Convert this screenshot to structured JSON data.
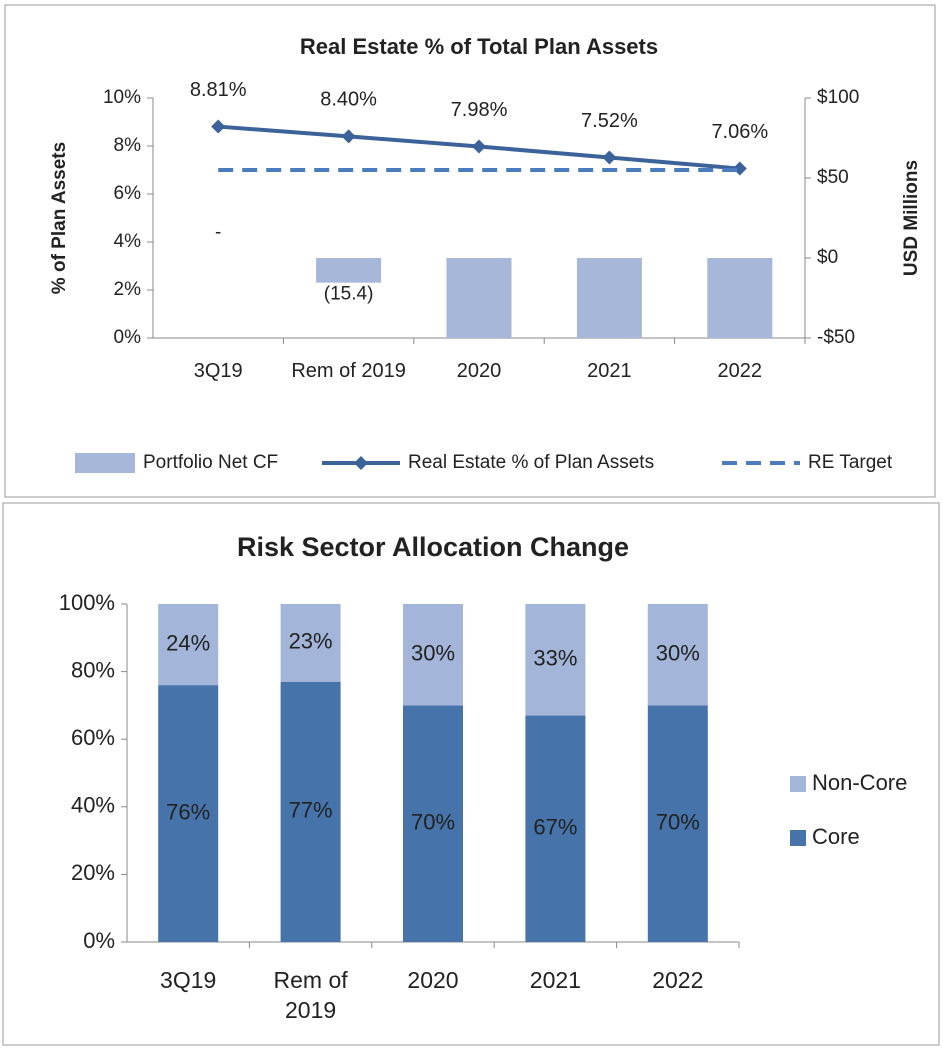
{
  "chart_data": [
    {
      "type": "combo",
      "title": "Real Estate % of Total Plan Assets",
      "categories": [
        "3Q19",
        "Rem of 2019",
        "2020",
        "2021",
        "2022"
      ],
      "ylabel": "% of Plan Assets",
      "y2label": "USD Millions",
      "ylim": [
        0,
        10
      ],
      "yticks": [
        {
          "value": 0,
          "label": "0%"
        },
        {
          "value": 2,
          "label": "2%"
        },
        {
          "value": 4,
          "label": "4%"
        },
        {
          "value": 6,
          "label": "6%"
        },
        {
          "value": 8,
          "label": "8%"
        },
        {
          "value": 10,
          "label": "10%"
        }
      ],
      "y2lim": [
        -50,
        100
      ],
      "y2ticks": [
        {
          "value": -50,
          "label": "-$50"
        },
        {
          "value": 0,
          "label": "$0"
        },
        {
          "value": 50,
          "label": "$50"
        },
        {
          "value": 100,
          "label": "$100"
        }
      ],
      "legend": "bottom",
      "series": [
        {
          "name": "Portfolio Net CF",
          "type": "bar",
          "axis": "y2",
          "color": "#a6b7d9",
          "values": [
            0,
            -15.4,
            -50,
            -50,
            -50
          ],
          "value_labels": [
            "-",
            "(15.4)",
            null,
            null,
            null
          ]
        },
        {
          "name": "Real Estate % of Plan Assets",
          "type": "line",
          "marker": "diamond",
          "color": "#3c6399",
          "values": [
            8.81,
            8.4,
            7.98,
            7.52,
            7.06
          ],
          "value_labels": [
            "8.81%",
            "8.40%",
            "7.98%",
            "7.52%",
            "7.06%"
          ]
        },
        {
          "name": "RE Target",
          "type": "line",
          "dash": true,
          "color": "#4a7cbf",
          "values": [
            7,
            7,
            7,
            7,
            7
          ]
        }
      ]
    },
    {
      "type": "stacked_bar",
      "title": "Risk Sector Allocation Change",
      "categories": [
        "3Q19",
        "Rem of 2019",
        "2020",
        "2021",
        "2022"
      ],
      "ylim": [
        0,
        100
      ],
      "yticks": [
        {
          "value": 0,
          "label": "0%"
        },
        {
          "value": 20,
          "label": "20%"
        },
        {
          "value": 40,
          "label": "40%"
        },
        {
          "value": 60,
          "label": "60%"
        },
        {
          "value": 80,
          "label": "80%"
        },
        {
          "value": 100,
          "label": "100%"
        }
      ],
      "legend": "right",
      "series": [
        {
          "name": "Core",
          "color": "#4673a9",
          "values": [
            76,
            77,
            70,
            67,
            70
          ],
          "value_labels": [
            "76%",
            "77%",
            "70%",
            "67%",
            "70%"
          ]
        },
        {
          "name": "Non-Core",
          "color": "#a3b5d9",
          "values": [
            24,
            23,
            30,
            33,
            30
          ],
          "value_labels": [
            "24%",
            "23%",
            "30%",
            "33%",
            "30%"
          ]
        }
      ]
    }
  ]
}
